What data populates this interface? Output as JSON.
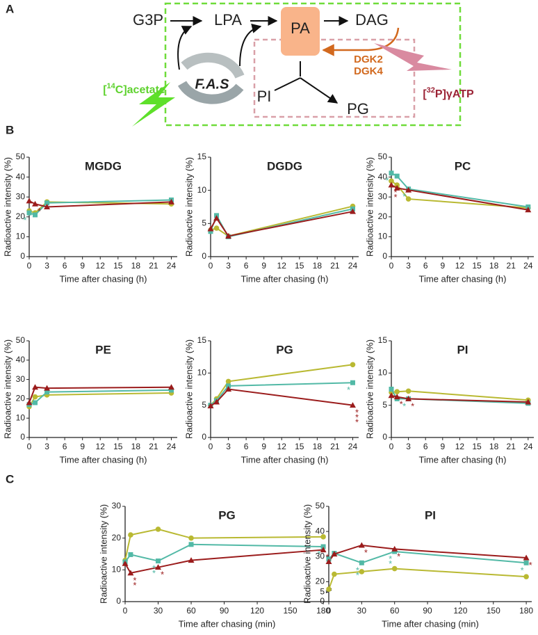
{
  "panel_labels": [
    "A",
    "B",
    "C"
  ],
  "diagram": {
    "g3p": "G3P",
    "lpa": "LPA",
    "pa": "PA",
    "dag": "DAG",
    "fas": "F.A.S",
    "acetate": {
      "pre": "[",
      "sup": "14",
      "post": "C]acetate"
    },
    "dgk": [
      "DGK2",
      "DGK4"
    ],
    "atp": {
      "pre": "[",
      "sup": "32",
      "post": "P]γATP"
    },
    "pi": "PI",
    "pg": "PG"
  },
  "chart_data": [
    {
      "type": "line",
      "title": "MGDG",
      "ylabel": "Radioactive intensity (%)",
      "xlabel": "Time after chasing (h)",
      "x": [
        0,
        1,
        3,
        24
      ],
      "xlim": [
        0,
        25
      ],
      "xticks": [
        0,
        3,
        6,
        9,
        12,
        15,
        18,
        21,
        24
      ],
      "ylim": [
        0,
        50
      ],
      "yticks": [
        0,
        10,
        20,
        30,
        40,
        50
      ],
      "series": [
        {
          "color": "#b9b932",
          "marker": "circle",
          "values": [
            23,
            22,
            27.5,
            26.5
          ]
        },
        {
          "color": "#52b9a6",
          "marker": "square",
          "values": [
            22,
            21,
            27,
            28.5
          ]
        },
        {
          "color": "#9b1c1c",
          "marker": "triangle",
          "values": [
            28,
            26.5,
            25,
            27.5
          ]
        }
      ],
      "annotations": [
        {
          "text": "*",
          "series": 1,
          "index": 0
        },
        {
          "text": "*",
          "series": 2,
          "index": 1
        }
      ]
    },
    {
      "type": "line",
      "title": "DGDG",
      "ylabel": "Radioactive intensity (%)",
      "xlabel": "Time after chasing (h)",
      "x": [
        0,
        1,
        3,
        24
      ],
      "xlim": [
        0,
        25
      ],
      "xticks": [
        0,
        3,
        6,
        9,
        12,
        15,
        18,
        21,
        24
      ],
      "ylim": [
        0,
        15
      ],
      "yticks": [
        0,
        5,
        10,
        15
      ],
      "series": [
        {
          "color": "#b9b932",
          "marker": "circle",
          "values": [
            4,
            4.3,
            3.1,
            7.6
          ]
        },
        {
          "color": "#52b9a6",
          "marker": "square",
          "values": [
            3.8,
            6.2,
            3.0,
            7.2
          ]
        },
        {
          "color": "#9b1c1c",
          "marker": "triangle",
          "values": [
            4.2,
            5.8,
            3.1,
            6.8
          ]
        }
      ],
      "annotations": []
    },
    {
      "type": "line",
      "title": "PC",
      "ylabel": "Radioactive intensity (%)",
      "xlabel": "Time after chasing (h)",
      "x": [
        0,
        1,
        3,
        24
      ],
      "xlim": [
        0,
        25
      ],
      "xticks": [
        0,
        3,
        6,
        9,
        12,
        15,
        18,
        21,
        24
      ],
      "ylim": [
        0,
        50
      ],
      "yticks": [
        0,
        10,
        20,
        30,
        40,
        50
      ],
      "series": [
        {
          "color": "#b9b932",
          "marker": "circle",
          "values": [
            38,
            36,
            29,
            24.5
          ]
        },
        {
          "color": "#52b9a6",
          "marker": "square",
          "values": [
            42,
            40.5,
            34,
            25
          ]
        },
        {
          "color": "#9b1c1c",
          "marker": "triangle",
          "values": [
            36,
            34.5,
            33.5,
            23.5
          ]
        }
      ],
      "annotations": [
        {
          "text": "*",
          "series": 1,
          "index": 0
        },
        {
          "text": "**",
          "series": 2,
          "index": 0
        },
        {
          "text": "*",
          "series": 1,
          "index": 2
        }
      ]
    },
    {
      "type": "line",
      "title": "PE",
      "ylabel": "Radioactive intensity (%)",
      "xlabel": "Time after chasing (h)",
      "x": [
        0,
        1,
        3,
        24
      ],
      "xlim": [
        0,
        25
      ],
      "xticks": [
        0,
        3,
        6,
        9,
        12,
        15,
        18,
        21,
        24
      ],
      "ylim": [
        0,
        50
      ],
      "yticks": [
        0,
        10,
        20,
        30,
        40,
        50
      ],
      "series": [
        {
          "color": "#b9b932",
          "marker": "circle",
          "values": [
            16,
            21,
            22,
            23
          ]
        },
        {
          "color": "#52b9a6",
          "marker": "square",
          "values": [
            17,
            18,
            23.5,
            24.5
          ]
        },
        {
          "color": "#9b1c1c",
          "marker": "triangle",
          "values": [
            18,
            26,
            25.5,
            26
          ]
        }
      ],
      "annotations": []
    },
    {
      "type": "line",
      "title": "PG",
      "ylabel": "Radioactive intensity (%)",
      "xlabel": "Time after chasing (h)",
      "x": [
        0,
        1,
        3,
        24
      ],
      "xlim": [
        0,
        25
      ],
      "xticks": [
        0,
        3,
        6,
        9,
        12,
        15,
        18,
        21,
        24
      ],
      "ylim": [
        0,
        15
      ],
      "yticks": [
        0,
        5,
        10,
        15
      ],
      "series": [
        {
          "color": "#b9b932",
          "marker": "circle",
          "values": [
            5,
            6,
            8.7,
            11.3
          ]
        },
        {
          "color": "#52b9a6",
          "marker": "square",
          "values": [
            5,
            5.7,
            8,
            8.5
          ]
        },
        {
          "color": "#9b1c1c",
          "marker": "triangle",
          "values": [
            4.9,
            5.5,
            7.5,
            5
          ]
        }
      ],
      "annotations": [
        {
          "text": "*",
          "series": 1,
          "index": 3
        },
        {
          "text": "***",
          "series": 2,
          "index": 3
        }
      ]
    },
    {
      "type": "line",
      "title": "PI",
      "ylabel": "Radioactive intensity (%)",
      "xlabel": "Time after chasing (h)",
      "x": [
        0,
        1,
        3,
        24
      ],
      "xlim": [
        0,
        25
      ],
      "xticks": [
        0,
        3,
        6,
        9,
        12,
        15,
        18,
        21,
        24
      ],
      "ylim": [
        0,
        15
      ],
      "yticks": [
        0,
        5,
        10,
        15
      ],
      "series": [
        {
          "color": "#b9b932",
          "marker": "circle",
          "values": [
            7,
            7.1,
            7.2,
            5.8
          ]
        },
        {
          "color": "#52b9a6",
          "marker": "square",
          "values": [
            7.5,
            6,
            6,
            5.3
          ]
        },
        {
          "color": "#9b1c1c",
          "marker": "triangle",
          "values": [
            6.5,
            6.3,
            6.0,
            5.5
          ]
        }
      ],
      "annotations": [
        {
          "text": "*",
          "series": 2,
          "index": 1
        },
        {
          "text": "*",
          "series": 1,
          "index": 2
        },
        {
          "text": "*",
          "series": 2,
          "index": 2
        }
      ]
    },
    {
      "type": "line",
      "title": "PG",
      "ylabel": "Radioactive intensity (%)",
      "xlabel": "Time after chasing (min)",
      "x": [
        0,
        5,
        30,
        60,
        180
      ],
      "xlim": [
        0,
        185
      ],
      "xticks": [
        0,
        30,
        60,
        90,
        120,
        150,
        180
      ],
      "ylim": [
        0,
        30
      ],
      "yticks": [
        0,
        10,
        20,
        30
      ],
      "series": [
        {
          "color": "#b9b932",
          "marker": "circle",
          "values": [
            13,
            21,
            22.8,
            20,
            20.4
          ]
        },
        {
          "color": "#52b9a6",
          "marker": "square",
          "values": [
            12.5,
            14.8,
            12.8,
            18,
            17.3
          ]
        },
        {
          "color": "#9b1c1c",
          "marker": "triangle",
          "values": [
            12,
            9,
            10.8,
            13,
            16.3
          ]
        }
      ],
      "annotations": [
        {
          "text": "*",
          "series": 1,
          "index": 1
        },
        {
          "text": "**",
          "series": 2,
          "index": 1
        },
        {
          "text": "**",
          "series": 1,
          "index": 2
        },
        {
          "text": "*",
          "series": 2,
          "index": 2
        },
        {
          "text": "*",
          "series": 1,
          "index": 4
        },
        {
          "text": "*",
          "series": 2,
          "index": 4
        }
      ]
    },
    {
      "type": "line",
      "title": "PI",
      "ylabel": "Radioactive intensity (%)",
      "xlabel": "Time after chasing (min)",
      "x": [
        0,
        5,
        30,
        60,
        180
      ],
      "xlim": [
        0,
        185
      ],
      "xticks": [
        0,
        30,
        60,
        90,
        120,
        150,
        180
      ],
      "ylim": [
        0,
        50
      ],
      "yticks": [
        0,
        5,
        20,
        30,
        40,
        50
      ],
      "ybreak": [
        5,
        17
      ],
      "series": [
        {
          "color": "#b9b932",
          "marker": "circle",
          "values": [
            17,
            23,
            24,
            25.2,
            22
          ]
        },
        {
          "color": "#52b9a6",
          "marker": "square",
          "values": [
            29,
            31.3,
            27.5,
            32,
            27.5
          ]
        },
        {
          "color": "#9b1c1c",
          "marker": "triangle",
          "values": [
            28,
            31,
            34.5,
            33,
            29.5
          ]
        }
      ],
      "annotations": [
        {
          "text": "*",
          "series": 1,
          "index": 1
        },
        {
          "text": "*",
          "series": 2,
          "index": 2
        },
        {
          "text": "**",
          "series": 1,
          "index": 2
        },
        {
          "text": "*",
          "series": 2,
          "index": 3
        },
        {
          "text": "**",
          "series": 1,
          "index": 3
        },
        {
          "text": "*",
          "series": 2,
          "index": 4
        },
        {
          "text": "*",
          "series": 1,
          "index": 4
        }
      ]
    }
  ]
}
